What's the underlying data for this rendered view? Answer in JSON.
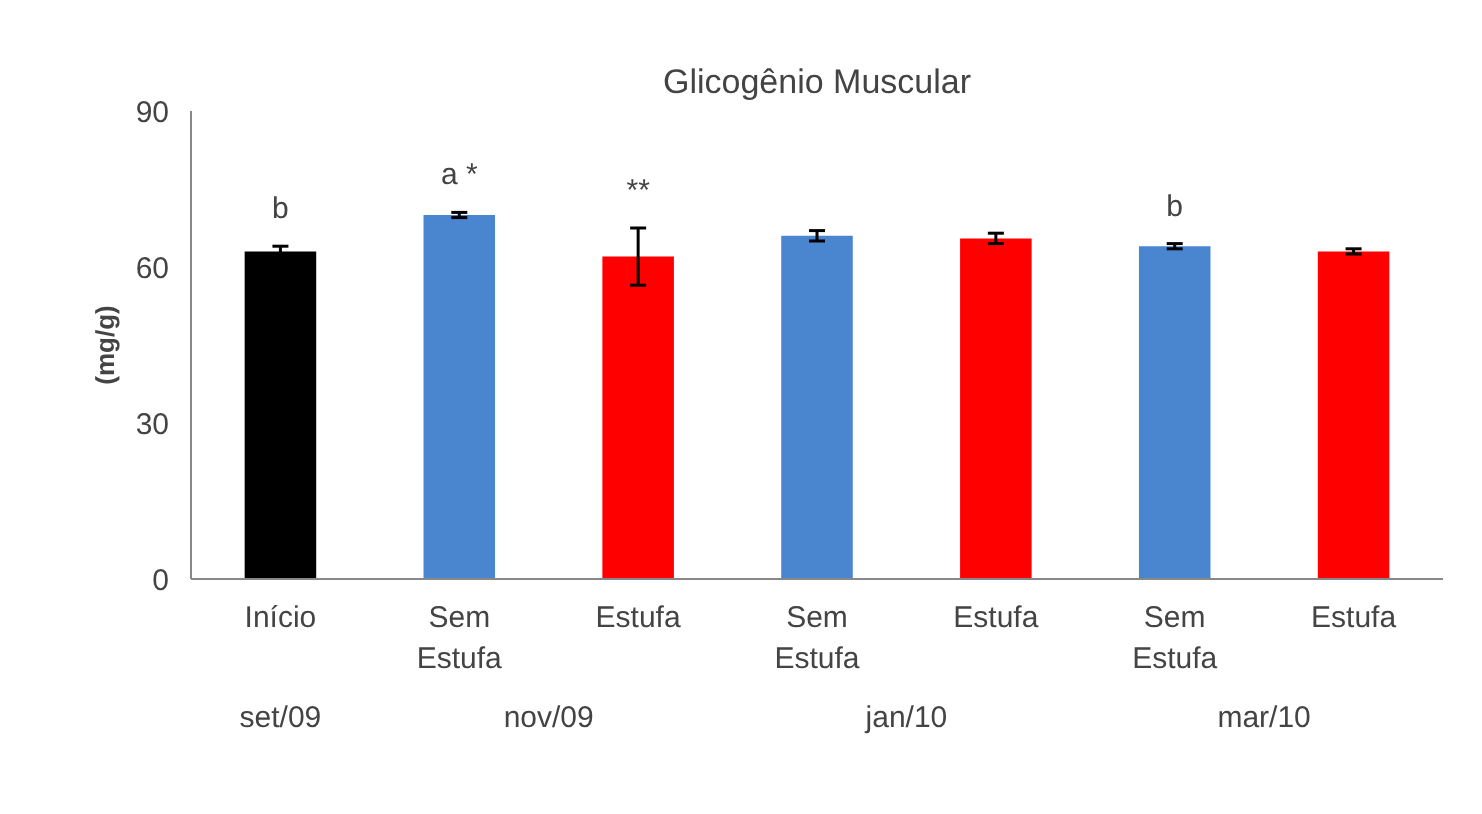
{
  "chart_data": {
    "type": "bar",
    "title": "Glicogênio Muscular",
    "ylabel": "(mg/g)",
    "categories": [
      "Início",
      "Sem Estufa",
      "Estufa",
      "Sem Estufa",
      "Estufa",
      "Sem Estufa",
      "Estufa"
    ],
    "values": [
      63,
      70,
      62,
      66,
      65.5,
      64,
      63
    ],
    "colors": [
      "#000000",
      "#4a86d0",
      "#ff0000",
      "#4a86d0",
      "#ff0000",
      "#4a86d0",
      "#ff0000"
    ],
    "errors": [
      1,
      0.5,
      5.5,
      1,
      1,
      0.5,
      0.5
    ],
    "value_labels": [
      "b",
      "a *",
      "**",
      null,
      null,
      "b",
      null
    ],
    "annotations": [
      "set/09",
      "nov/09",
      "jan/10",
      "mar/10"
    ],
    "ylim": [
      0,
      90
    ],
    "yticks": [
      0,
      30,
      60,
      90
    ],
    "grid": false
  }
}
